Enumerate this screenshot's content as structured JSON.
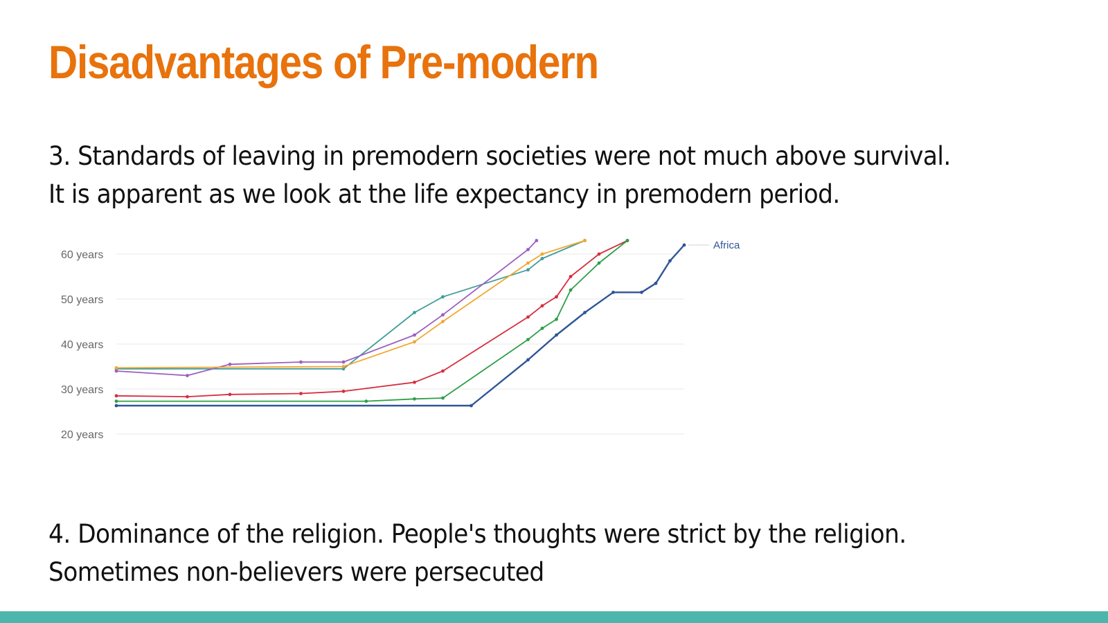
{
  "slide": {
    "title": "Disadvantages of Pre-modern",
    "title_color": "#E8720C",
    "paragraph1_line1": "3. Standards of leaving in premodern societies were not much above survival.",
    "paragraph1_line2": "It is apparent as we look at the life expectancy in premodern period.",
    "paragraph2_line1": "4. Dominance of the religion. People's thoughts were strict by the religion.",
    "paragraph2_line2": "Sometimes non-believers were persecuted",
    "accent_bar_color": "#4DB6AC"
  },
  "chart_data": {
    "type": "line",
    "title": "",
    "xlabel": "",
    "ylabel": "",
    "x_range": [
      1770,
      1970
    ],
    "ylim": [
      20,
      60
    ],
    "y_ticks": [
      20,
      30,
      40,
      50,
      60
    ],
    "y_tick_labels": [
      "20 years",
      "30 years",
      "40 years",
      "50 years",
      "60 years"
    ],
    "grid": true,
    "series": [
      {
        "name": "",
        "color": "#3F9C9A",
        "points": [
          [
            1770,
            34.5
          ],
          [
            1850,
            34.5
          ],
          [
            1875,
            47
          ],
          [
            1885,
            50.5
          ],
          [
            1915,
            56.5
          ],
          [
            1920,
            59
          ],
          [
            1935,
            63
          ]
        ]
      },
      {
        "name": "",
        "color": "#9B5FC0",
        "points": [
          [
            1770,
            34
          ],
          [
            1795,
            33
          ],
          [
            1810,
            35.5
          ],
          [
            1835,
            36
          ],
          [
            1850,
            36
          ],
          [
            1875,
            42
          ],
          [
            1885,
            46.5
          ],
          [
            1915,
            61
          ],
          [
            1918,
            63
          ]
        ]
      },
      {
        "name": "",
        "color": "#F0A830",
        "points": [
          [
            1770,
            34.7
          ],
          [
            1850,
            35
          ],
          [
            1875,
            40.5
          ],
          [
            1885,
            45
          ],
          [
            1915,
            58
          ],
          [
            1920,
            60
          ],
          [
            1935,
            63
          ]
        ]
      },
      {
        "name": "",
        "color": "#D62E3E",
        "points": [
          [
            1770,
            28.5
          ],
          [
            1795,
            28.3
          ],
          [
            1810,
            28.8
          ],
          [
            1835,
            29
          ],
          [
            1850,
            29.5
          ],
          [
            1875,
            31.5
          ],
          [
            1885,
            34
          ],
          [
            1915,
            46
          ],
          [
            1920,
            48.5
          ],
          [
            1925,
            50.5
          ],
          [
            1930,
            55
          ],
          [
            1940,
            60
          ],
          [
            1950,
            63
          ]
        ]
      },
      {
        "name": "",
        "color": "#2E9E48",
        "points": [
          [
            1770,
            27.3
          ],
          [
            1858,
            27.3
          ],
          [
            1875,
            27.8
          ],
          [
            1885,
            28
          ],
          [
            1915,
            41
          ],
          [
            1920,
            43.5
          ],
          [
            1925,
            45.5
          ],
          [
            1930,
            52
          ],
          [
            1940,
            58
          ],
          [
            1950,
            63
          ]
        ]
      },
      {
        "name": "Africa",
        "color": "#2F5597",
        "points": [
          [
            1770,
            26.3
          ],
          [
            1895,
            26.3
          ],
          [
            1915,
            36.5
          ],
          [
            1925,
            42
          ],
          [
            1935,
            47
          ],
          [
            1945,
            51.5
          ],
          [
            1955,
            51.5
          ],
          [
            1960,
            53.5
          ],
          [
            1965,
            58.5
          ],
          [
            1970,
            62
          ]
        ]
      }
    ]
  }
}
